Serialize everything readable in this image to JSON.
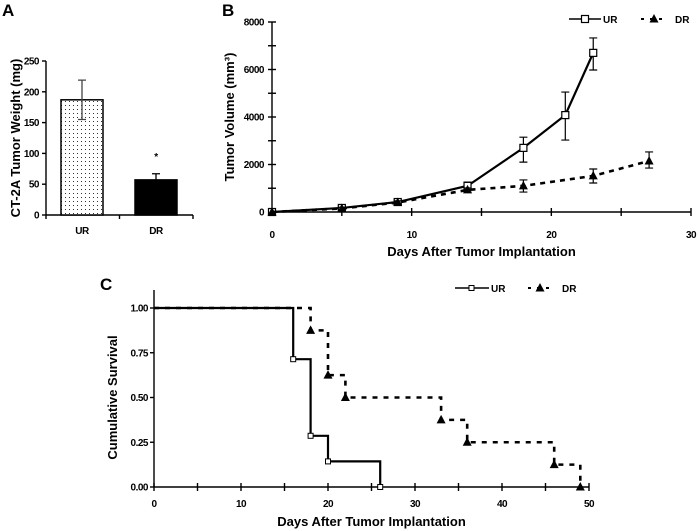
{
  "chart_data": [
    {
      "panel": "A",
      "type": "bar",
      "title": "",
      "xlabel": "",
      "ylabel": "CT-2A Tumor Weight (mg)",
      "categories": [
        "UR",
        "DR"
      ],
      "values": [
        187,
        57
      ],
      "error_upper": [
        219,
        67
      ],
      "error_lower": [
        155,
        57
      ],
      "ylim": [
        0,
        250
      ],
      "yticks": [
        "0",
        "50",
        "100",
        "150",
        "200",
        "250"
      ],
      "bar_styles": [
        "dotted-white",
        "solid-black"
      ],
      "annotations": [
        {
          "category": "DR",
          "text": "*"
        }
      ],
      "grid": false
    },
    {
      "panel": "B",
      "type": "line",
      "xlabel": "Days After Tumor Implantation",
      "ylabel": "Tumor Volume (mm³)",
      "xlim": [
        0,
        30
      ],
      "ylim": [
        0,
        8000
      ],
      "xticks": [
        "0",
        "10",
        "20",
        "30"
      ],
      "yticks": [
        "0",
        "2000",
        "4000",
        "6000",
        "8000"
      ],
      "legend_position": "top-right",
      "grid": false,
      "series": [
        {
          "name": "UR",
          "style": "solid-open-square",
          "x": [
            0,
            5,
            9,
            14,
            18,
            21,
            23
          ],
          "y": [
            0,
            170,
            420,
            1100,
            2700,
            4080,
            6700
          ],
          "err_low": [
            0,
            100,
            330,
            930,
            2100,
            3030,
            5980
          ],
          "err_high": [
            0,
            250,
            520,
            1260,
            3150,
            5050,
            7330
          ]
        },
        {
          "name": "DR",
          "style": "dashed-filled-triangle",
          "x": [
            0,
            5,
            9,
            14,
            18,
            23,
            27
          ],
          "y": [
            0,
            150,
            400,
            930,
            1100,
            1520,
            2150
          ],
          "err_low": [
            0,
            100,
            330,
            840,
            840,
            1220,
            1850
          ],
          "err_high": [
            0,
            200,
            470,
            1010,
            1350,
            1810,
            2530
          ]
        }
      ]
    },
    {
      "panel": "C",
      "type": "line",
      "subtype": "kaplan-meier",
      "xlabel": "Days After Tumor Implantation",
      "ylabel": "Cumulative Survival",
      "xlim": [
        0,
        50
      ],
      "ylim": [
        0,
        1
      ],
      "xticks": [
        "0",
        "10",
        "20",
        "30",
        "40",
        "50"
      ],
      "yticks": [
        "0.00",
        "0.25",
        "0.50",
        "0.75",
        "1.00"
      ],
      "legend_position": "top-right",
      "grid": false,
      "series": [
        {
          "name": "UR",
          "style": "solid-open-square",
          "x": [
            0,
            16,
            18,
            20,
            26
          ],
          "y": [
            1.0,
            0.714,
            0.286,
            0.143,
            0.0
          ]
        },
        {
          "name": "DR",
          "style": "dashed-filled-triangle",
          "x": [
            0,
            18,
            20,
            22,
            33,
            36,
            46,
            49
          ],
          "y": [
            1.0,
            0.875,
            0.625,
            0.5,
            0.375,
            0.25,
            0.125,
            0.0
          ]
        }
      ]
    }
  ],
  "labels": {
    "panel_a": "A",
    "panel_b": "B",
    "panel_c": "C",
    "asterisk": "*"
  }
}
